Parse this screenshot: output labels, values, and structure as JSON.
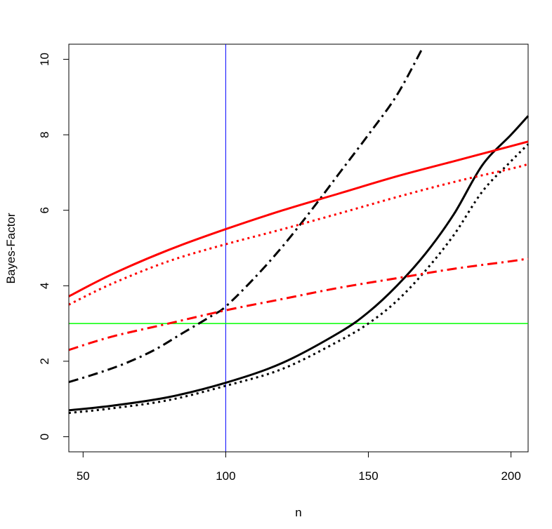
{
  "chart_data": {
    "type": "line",
    "title": "",
    "xlabel": "n",
    "ylabel": "Bayes-Factor",
    "xlim": [
      45,
      206
    ],
    "ylim": [
      -0.4,
      10.4
    ],
    "x_ticks": [
      50,
      100,
      150,
      200
    ],
    "x_tick_labels": [
      "50",
      "100",
      "150",
      "200"
    ],
    "y_ticks": [
      0,
      2,
      4,
      6,
      8,
      10
    ],
    "y_tick_labels": [
      "0",
      "2",
      "4",
      "6",
      "8",
      "10"
    ],
    "grid": false,
    "legend": "none",
    "reference_lines": [
      {
        "orientation": "vertical",
        "value": 100,
        "color": "#0000ff"
      },
      {
        "orientation": "horizontal",
        "value": 3,
        "color": "#00ff00"
      }
    ],
    "series": [
      {
        "color": "#000000",
        "dash": "solid",
        "width": 3,
        "x": [
          45,
          60,
          80,
          100,
          120,
          140,
          150,
          160,
          170,
          180,
          190,
          200,
          206
        ],
        "y": [
          0.7,
          0.82,
          1.05,
          1.43,
          1.96,
          2.77,
          3.3,
          4.0,
          4.85,
          5.9,
          7.2,
          8.0,
          8.5
        ]
      },
      {
        "color": "#000000",
        "dash": "dotted",
        "width": 3,
        "x": [
          45,
          60,
          80,
          100,
          120,
          140,
          150,
          160,
          170,
          180,
          190,
          200,
          206
        ],
        "y": [
          0.63,
          0.75,
          0.97,
          1.35,
          1.8,
          2.55,
          3.0,
          3.6,
          4.4,
          5.35,
          6.5,
          7.3,
          7.75
        ]
      },
      {
        "color": "#000000",
        "dash": "dashdot",
        "width": 3,
        "x": [
          45,
          55,
          65,
          75,
          85,
          95,
          100,
          110,
          120,
          130,
          140,
          150,
          160,
          169
        ],
        "y": [
          1.45,
          1.68,
          1.95,
          2.3,
          2.75,
          3.2,
          3.45,
          4.2,
          5.05,
          6.0,
          7.0,
          8.0,
          9.05,
          10.3
        ]
      },
      {
        "color": "#ff0000",
        "dash": "solid",
        "width": 3,
        "x": [
          45,
          60,
          80,
          100,
          120,
          140,
          160,
          180,
          200,
          206
        ],
        "y": [
          3.72,
          4.3,
          4.95,
          5.5,
          6.0,
          6.45,
          6.9,
          7.3,
          7.7,
          7.82
        ]
      },
      {
        "color": "#ff0000",
        "dash": "dotted",
        "width": 3,
        "x": [
          45,
          60,
          80,
          100,
          120,
          140,
          160,
          180,
          200,
          206
        ],
        "y": [
          3.5,
          4.05,
          4.65,
          5.1,
          5.5,
          5.92,
          6.35,
          6.75,
          7.1,
          7.22
        ]
      },
      {
        "color": "#ff0000",
        "dash": "dashdot",
        "width": 3,
        "x": [
          45,
          60,
          80,
          100,
          120,
          140,
          160,
          180,
          200,
          206
        ],
        "y": [
          2.3,
          2.65,
          3.0,
          3.35,
          3.65,
          3.95,
          4.2,
          4.45,
          4.65,
          4.72
        ]
      }
    ]
  }
}
